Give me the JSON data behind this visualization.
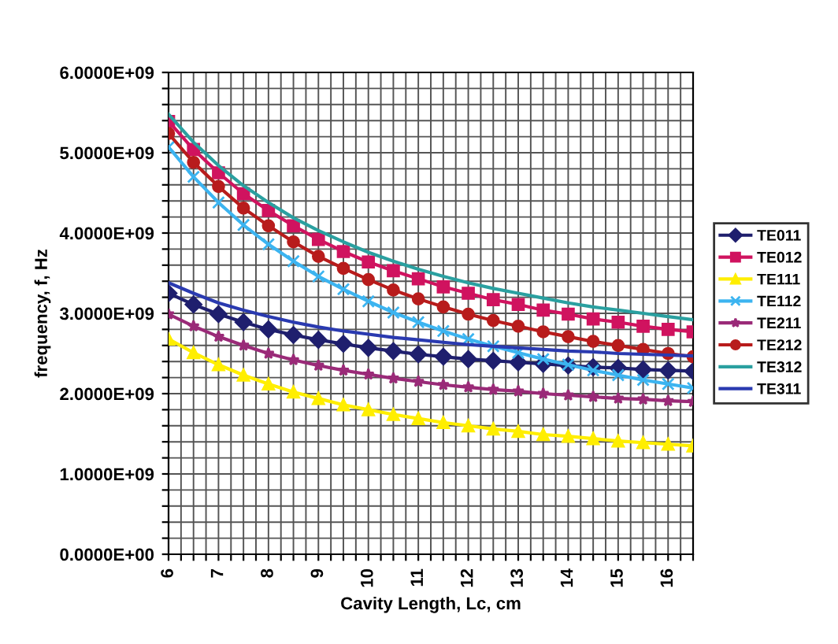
{
  "chart_data": {
    "type": "line",
    "xlabel": "Cavity Length, Lc, cm",
    "ylabel": "frequency, f, Hz",
    "x": [
      6,
      6.5,
      7,
      7.5,
      8,
      8.5,
      9,
      9.5,
      10,
      10.5,
      11,
      11.5,
      12,
      12.5,
      13,
      13.5,
      14,
      14.5,
      15,
      15.5,
      16,
      16.5
    ],
    "series": [
      {
        "name": "TE011",
        "color": "#1f1f6e",
        "marker": "diamond",
        "values": [
          3250000000.0,
          3110000000.0,
          2990000000.0,
          2890000000.0,
          2800000000.0,
          2730000000.0,
          2670000000.0,
          2620000000.0,
          2570000000.0,
          2530000000.0,
          2490000000.0,
          2460000000.0,
          2430000000.0,
          2410000000.0,
          2390000000.0,
          2370000000.0,
          2350000000.0,
          2330000000.0,
          2320000000.0,
          2300000000.0,
          2290000000.0,
          2280000000.0
        ]
      },
      {
        "name": "TE012",
        "color": "#d0135f",
        "marker": "square",
        "values": [
          5390000000.0,
          5040000000.0,
          4750000000.0,
          4490000000.0,
          4280000000.0,
          4090000000.0,
          3920000000.0,
          3770000000.0,
          3640000000.0,
          3530000000.0,
          3430000000.0,
          3330000000.0,
          3250000000.0,
          3170000000.0,
          3110000000.0,
          3040000000.0,
          2990000000.0,
          2930000000.0,
          2890000000.0,
          2840000000.0,
          2800000000.0,
          2770000000.0
        ]
      },
      {
        "name": "TE111",
        "color": "#ffee00",
        "marker": "triangle",
        "values": [
          2680000000.0,
          2510000000.0,
          2360000000.0,
          2230000000.0,
          2120000000.0,
          2020000000.0,
          1940000000.0,
          1860000000.0,
          1800000000.0,
          1740000000.0,
          1690000000.0,
          1640000000.0,
          1600000000.0,
          1560000000.0,
          1530000000.0,
          1490000000.0,
          1470000000.0,
          1440000000.0,
          1410000000.0,
          1390000000.0,
          1370000000.0,
          1350000000.0
        ]
      },
      {
        "name": "TE112",
        "color": "#3cb4f0",
        "marker": "cross",
        "values": [
          5070000000.0,
          4700000000.0,
          4380000000.0,
          4100000000.0,
          3860000000.0,
          3650000000.0,
          3460000000.0,
          3300000000.0,
          3150000000.0,
          3010000000.0,
          2890000000.0,
          2780000000.0,
          2680000000.0,
          2590000000.0,
          2510000000.0,
          2430000000.0,
          2360000000.0,
          2290000000.0,
          2230000000.0,
          2170000000.0,
          2120000000.0,
          2070000000.0
        ]
      },
      {
        "name": "TE211",
        "color": "#9a2a78",
        "marker": "star",
        "values": [
          2990000000.0,
          2840000000.0,
          2710000000.0,
          2600000000.0,
          2500000000.0,
          2420000000.0,
          2350000000.0,
          2290000000.0,
          2240000000.0,
          2190000000.0,
          2150000000.0,
          2110000000.0,
          2080000000.0,
          2050000000.0,
          2030000000.0,
          2000000000.0,
          1980000000.0,
          1960000000.0,
          1940000000.0,
          1930000000.0,
          1910000000.0,
          1900000000.0
        ]
      },
      {
        "name": "TE212",
        "color": "#b81c1c",
        "marker": "circle",
        "values": [
          5240000000.0,
          4880000000.0,
          4580000000.0,
          4310000000.0,
          4090000000.0,
          3890000000.0,
          3710000000.0,
          3560000000.0,
          3420000000.0,
          3290000000.0,
          3180000000.0,
          3080000000.0,
          2990000000.0,
          2910000000.0,
          2840000000.0,
          2770000000.0,
          2710000000.0,
          2650000000.0,
          2600000000.0,
          2550000000.0,
          2500000000.0,
          2460000000.0
        ]
      },
      {
        "name": "TE312",
        "color": "#2aa0a0",
        "marker": "none",
        "values": [
          5480000000.0,
          5130000000.0,
          4840000000.0,
          4590000000.0,
          4380000000.0,
          4190000000.0,
          4030000000.0,
          3890000000.0,
          3760000000.0,
          3650000000.0,
          3550000000.0,
          3460000000.0,
          3380000000.0,
          3310000000.0,
          3250000000.0,
          3190000000.0,
          3130000000.0,
          3080000000.0,
          3040000000.0,
          3000000000.0,
          2960000000.0,
          2920000000.0
        ]
      },
      {
        "name": "TE311",
        "color": "#2a3ab0",
        "marker": "none",
        "values": [
          3380000000.0,
          3250000000.0,
          3130000000.0,
          3040000000.0,
          2960000000.0,
          2890000000.0,
          2830000000.0,
          2780000000.0,
          2740000000.0,
          2700000000.0,
          2670000000.0,
          2640000000.0,
          2610000000.0,
          2590000000.0,
          2570000000.0,
          2550000000.0,
          2530000000.0,
          2520000000.0,
          2500000000.0,
          2490000000.0,
          2480000000.0,
          2470000000.0
        ]
      }
    ],
    "xlim": [
      6,
      16.5
    ],
    "ylim": [
      0,
      6000000000.0
    ],
    "xticks": [
      6,
      {
        "value": 6.25,
        "label": null
      },
      {
        "value": 6.5,
        "label": null
      },
      {
        "value": 6.75,
        "label": null
      },
      7,
      {
        "value": 7.25,
        "label": null
      },
      {
        "value": 7.5,
        "label": null
      },
      {
        "value": 7.75,
        "label": null
      },
      8,
      {
        "value": 8.25,
        "label": null
      },
      {
        "value": 8.5,
        "label": null
      },
      {
        "value": 8.75,
        "label": null
      },
      9,
      {
        "value": 9.25,
        "label": null
      },
      {
        "value": 9.5,
        "label": null
      },
      {
        "value": 9.75,
        "label": null
      },
      10,
      {
        "value": 10.25,
        "label": null
      },
      {
        "value": 10.5,
        "label": null
      },
      {
        "value": 10.75,
        "label": null
      },
      11,
      {
        "value": 11.25,
        "label": null
      },
      {
        "value": 11.5,
        "label": null
      },
      {
        "value": 11.75,
        "label": null
      },
      12,
      {
        "value": 12.25,
        "label": null
      },
      {
        "value": 12.5,
        "label": null
      },
      {
        "value": 12.75,
        "label": null
      },
      13,
      {
        "value": 13.25,
        "label": null
      },
      {
        "value": 13.5,
        "label": null
      },
      {
        "value": 13.75,
        "label": null
      },
      14,
      {
        "value": 14.25,
        "label": null
      },
      {
        "value": 14.5,
        "label": null
      },
      {
        "value": 14.75,
        "label": null
      },
      15,
      {
        "value": 15.25,
        "label": null
      },
      {
        "value": 15.5,
        "label": null
      },
      {
        "value": 15.75,
        "label": null
      },
      16,
      {
        "value": 16.25,
        "label": null
      },
      {
        "value": 16.5,
        "label": null
      }
    ],
    "yticks": [
      {
        "value": 0,
        "label": "0.0000E+00"
      },
      {
        "value": 200000000.0,
        "label": null
      },
      {
        "value": 400000000.0,
        "label": null
      },
      {
        "value": 600000000.0,
        "label": null
      },
      {
        "value": 800000000.0,
        "label": null
      },
      {
        "value": 1000000000.0,
        "label": "1.0000E+09"
      },
      {
        "value": 1200000000.0,
        "label": null
      },
      {
        "value": 1400000000.0,
        "label": null
      },
      {
        "value": 1600000000.0,
        "label": null
      },
      {
        "value": 1800000000.0,
        "label": null
      },
      {
        "value": 2000000000.0,
        "label": "2.0000E+09"
      },
      {
        "value": 2200000000.0,
        "label": null
      },
      {
        "value": 2400000000.0,
        "label": null
      },
      {
        "value": 2600000000.0,
        "label": null
      },
      {
        "value": 2800000000.0,
        "label": null
      },
      {
        "value": 3000000000.0,
        "label": "3.0000E+09"
      },
      {
        "value": 3200000000.0,
        "label": null
      },
      {
        "value": 3400000000.0,
        "label": null
      },
      {
        "value": 3600000000.0,
        "label": null
      },
      {
        "value": 3800000000.0,
        "label": null
      },
      {
        "value": 4000000000.0,
        "label": "4.0000E+09"
      },
      {
        "value": 4200000000.0,
        "label": null
      },
      {
        "value": 4400000000.0,
        "label": null
      },
      {
        "value": 4600000000.0,
        "label": null
      },
      {
        "value": 4800000000.0,
        "label": null
      },
      {
        "value": 5000000000.0,
        "label": "5.0000E+09"
      },
      {
        "value": 5200000000.0,
        "label": null
      },
      {
        "value": 5400000000.0,
        "label": null
      },
      {
        "value": 5600000000.0,
        "label": null
      },
      {
        "value": 5800000000.0,
        "label": null
      },
      {
        "value": 6000000000.0,
        "label": "6.0000E+09"
      }
    ],
    "grid": true,
    "legend": "right",
    "line_style": "solid"
  }
}
